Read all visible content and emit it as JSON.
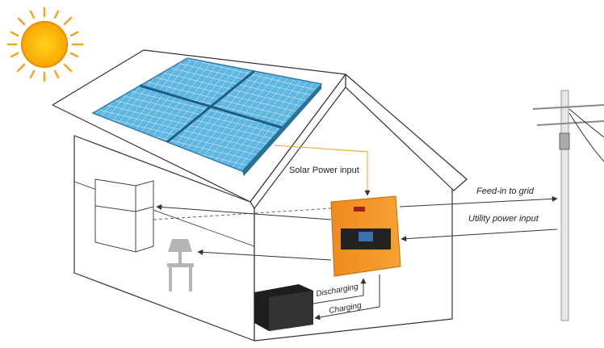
{
  "labels": {
    "solar_input": "Solar Power input",
    "feed_in": "Feed-in to grid",
    "utility_input": "Utility power input",
    "discharging": "Discharging",
    "charging": "Charging"
  }
}
